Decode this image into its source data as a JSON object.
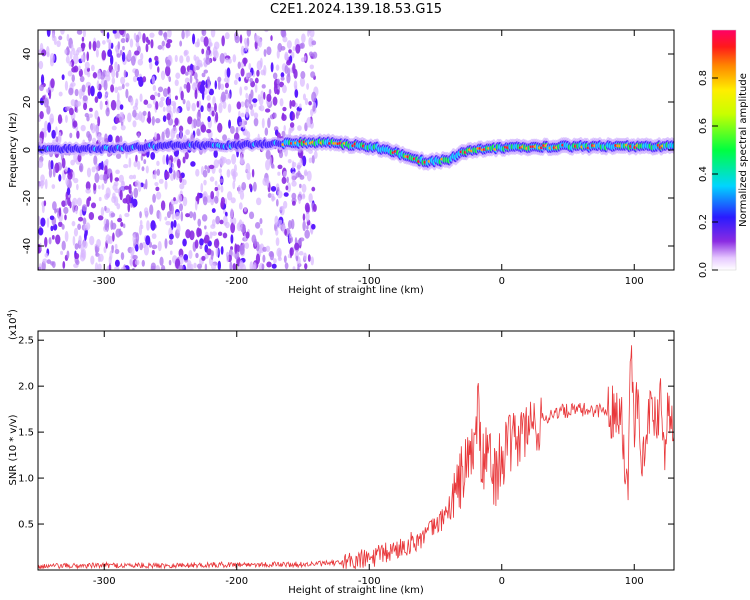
{
  "title": "C2E1.2024.139.18.53.G15",
  "chart_data": [
    {
      "type": "heatmap",
      "xlabel": "Height of straight line (km)",
      "ylabel": "Frequency (Hz)",
      "xlim": [
        -350,
        130
      ],
      "ylim": [
        -50,
        50
      ],
      "xticks": [
        -300,
        -200,
        -100,
        0,
        100
      ],
      "yticks": [
        -40,
        -20,
        0,
        20,
        40
      ],
      "colorbar": {
        "label": "Normalized spectral amplitude",
        "range": [
          0.0,
          1.0
        ],
        "ticks": [
          0.0,
          0.2,
          0.4,
          0.6,
          0.8
        ]
      },
      "noise_region_x": [
        -350,
        -140
      ],
      "ridge": [
        {
          "x": -350,
          "y": 0.5
        },
        {
          "x": -300,
          "y": 0.5
        },
        {
          "x": -250,
          "y": 2
        },
        {
          "x": -200,
          "y": 2
        },
        {
          "x": -160,
          "y": 3
        },
        {
          "x": -130,
          "y": 3
        },
        {
          "x": -110,
          "y": 2
        },
        {
          "x": -95,
          "y": 1
        },
        {
          "x": -80,
          "y": -1
        },
        {
          "x": -65,
          "y": -4
        },
        {
          "x": -55,
          "y": -5
        },
        {
          "x": -40,
          "y": -4
        },
        {
          "x": -30,
          "y": -1
        },
        {
          "x": -15,
          "y": 0.5
        },
        {
          "x": 0,
          "y": 1
        },
        {
          "x": 50,
          "y": 1.5
        },
        {
          "x": 100,
          "y": 1.5
        },
        {
          "x": 130,
          "y": 1.5
        }
      ],
      "grid": false
    },
    {
      "type": "line",
      "xlabel": "Height of straight line (km)",
      "ylabel": "SNR (10 * v/v)",
      "y_multiplier": "(x10",
      "y_multiplier_exp": "4",
      "y_multiplier_close": ")",
      "xlim": [
        -350,
        130
      ],
      "ylim": [
        0,
        2.6
      ],
      "xticks": [
        -300,
        -200,
        -100,
        0,
        100
      ],
      "yticks": [
        0.5,
        1.0,
        1.5,
        2.0,
        2.5
      ],
      "series": [
        {
          "color": "#e8373a",
          "x": [
            -350,
            -300,
            -250,
            -200,
            -150,
            -120,
            -100,
            -80,
            -60,
            -45,
            -35,
            -30,
            -25,
            -20,
            -18,
            -15,
            -10,
            -5,
            0,
            10,
            20,
            30,
            40,
            50,
            60,
            70,
            80,
            85,
            90,
            93,
            95,
            97,
            100,
            103,
            105,
            110,
            115,
            118,
            120,
            123,
            125,
            130
          ],
          "y": [
            0.04,
            0.05,
            0.05,
            0.06,
            0.06,
            0.08,
            0.12,
            0.22,
            0.35,
            0.55,
            0.8,
            1.05,
            1.2,
            1.4,
            1.8,
            1.1,
            1.3,
            1.0,
            1.25,
            1.4,
            1.55,
            1.62,
            1.72,
            1.73,
            1.74,
            1.74,
            1.74,
            1.72,
            1.8,
            1.2,
            0.75,
            2.5,
            1.6,
            2.0,
            1.1,
            1.7,
            1.7,
            1.68,
            2.05,
            1.3,
            1.72,
            1.7
          ]
        }
      ],
      "grid": false
    }
  ]
}
